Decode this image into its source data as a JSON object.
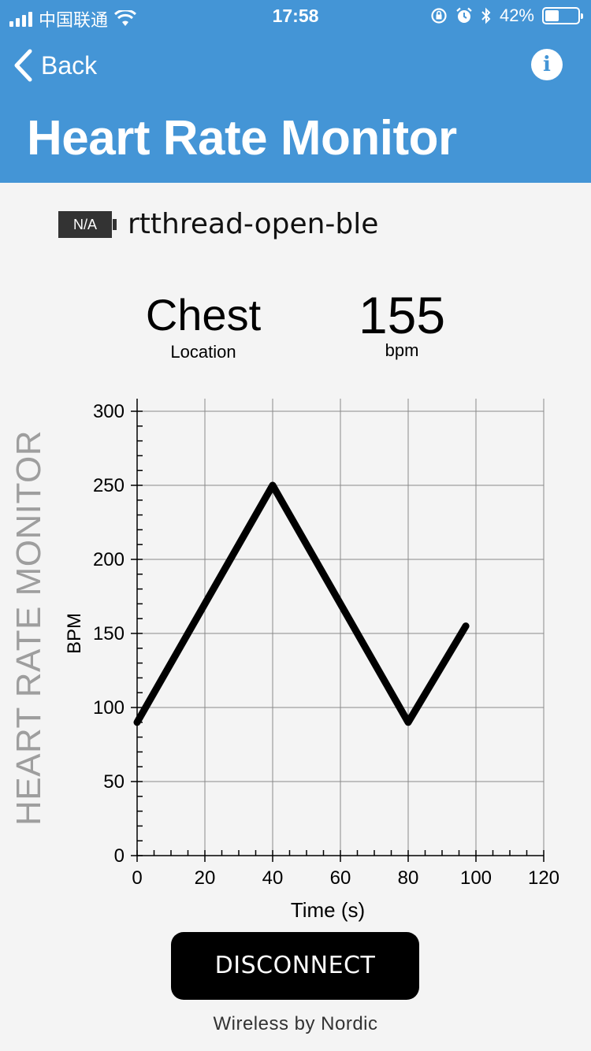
{
  "status_bar": {
    "carrier": "中国联通",
    "time": "17:58",
    "battery_percent_text": "42%",
    "battery_level": 0.42
  },
  "nav": {
    "back_label": "Back",
    "info_label": "i",
    "title": "Heart Rate Monitor"
  },
  "device": {
    "battery_tag": "N/A",
    "name": "rtthread-open-ble"
  },
  "stats": {
    "location_value": "Chest",
    "location_label": "Location",
    "hr_value": "155",
    "hr_unit": "bpm"
  },
  "side_label": "HEART RATE MONITOR",
  "chart_data": {
    "type": "line",
    "xlabel": "Time (s)",
    "ylabel": "BPM",
    "xlim": [
      0,
      120
    ],
    "ylim": [
      0,
      300
    ],
    "x_ticks": [
      0,
      20,
      40,
      60,
      80,
      100,
      120
    ],
    "y_ticks": [
      0,
      50,
      100,
      150,
      200,
      250,
      300
    ],
    "grid": true,
    "series": [
      {
        "x": [
          0,
          40,
          80,
          97
        ],
        "y": [
          90,
          250,
          90,
          155
        ]
      }
    ]
  },
  "actions": {
    "disconnect_label": "DISCONNECT"
  },
  "footer": "Wireless by Nordic"
}
